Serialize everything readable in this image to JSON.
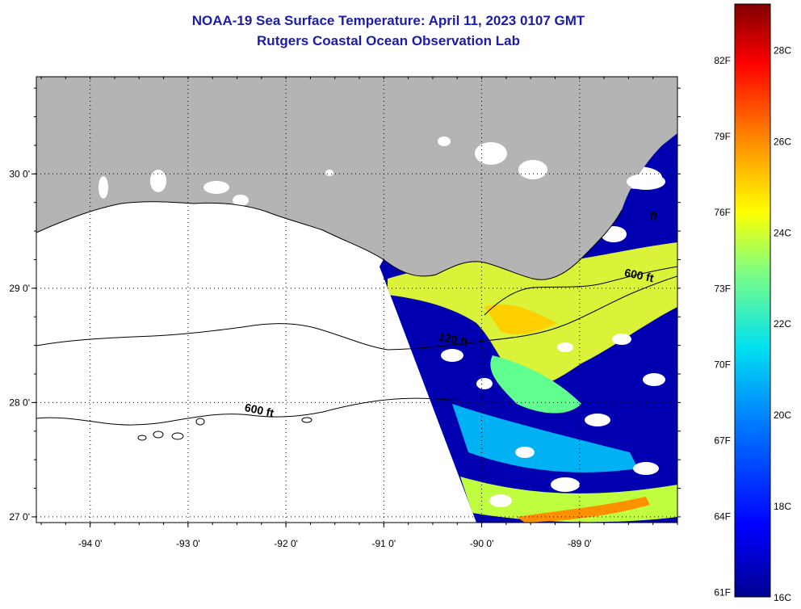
{
  "title": {
    "line1": "NOAA-19 Sea Surface Temperature:  April 11, 2023 0107 GMT",
    "line2": "Rutgers Coastal Ocean Observation Lab"
  },
  "map": {
    "lon_range": [
      -94.55,
      -88.0
    ],
    "lat_range": [
      26.95,
      30.85
    ],
    "lon_ticks": [
      {
        "value": -94,
        "label": "-94 0'"
      },
      {
        "value": -93,
        "label": "-93 0'"
      },
      {
        "value": -92,
        "label": "-92 0'"
      },
      {
        "value": -91,
        "label": "-91 0'"
      },
      {
        "value": -90,
        "label": "-90 0'"
      },
      {
        "value": -89,
        "label": "-89 0'"
      }
    ],
    "lat_ticks": [
      {
        "value": 27,
        "label": "27 0'"
      },
      {
        "value": 28,
        "label": "28 0'"
      },
      {
        "value": 29,
        "label": "29 0'"
      },
      {
        "value": 30,
        "label": "30 0'"
      }
    ],
    "contour_labels": [
      {
        "text": "120 ft",
        "lon": -90.3,
        "lat": 28.52
      },
      {
        "text": "600 ft",
        "lon": -92.28,
        "lat": 27.9
      },
      {
        "text": "600 ft",
        "lon": -88.4,
        "lat": 29.08
      },
      {
        "text": "ft",
        "lon": -88.25,
        "lat": 29.6
      }
    ],
    "colors": {
      "land": "#b4b4b4",
      "cloud": "#ffffff",
      "water_base": "#0000a8"
    }
  },
  "colorbar": {
    "range_c": [
      16,
      29
    ],
    "f_labels": [
      "82F",
      "79F",
      "76F",
      "73F",
      "70F",
      "67F",
      "64F",
      "61F"
    ],
    "c_labels": [
      "28C",
      "26C",
      "24C",
      "22C",
      "20C",
      "18C",
      "16C"
    ]
  }
}
